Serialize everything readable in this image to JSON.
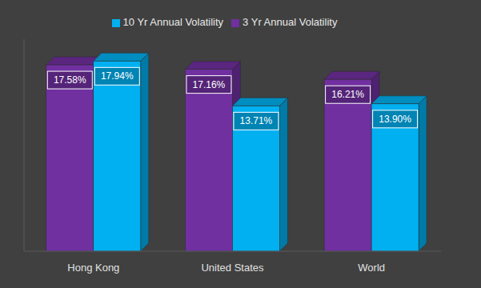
{
  "chart_data": {
    "type": "bar",
    "categories": [
      "Hong Kong",
      "United States",
      "World"
    ],
    "series": [
      {
        "name": "3 Yr Annual Volatility",
        "color": "#7030a0",
        "values": [
          17.58,
          17.16,
          16.21
        ],
        "value_labels": [
          "17.58%",
          "17.16%",
          "16.21%"
        ]
      },
      {
        "name": "10 Yr Annual Volatility",
        "color": "#00b0f0",
        "values": [
          17.94,
          13.71,
          13.9
        ],
        "value_labels": [
          "17.94%",
          "13.71%",
          "13.90%"
        ]
      }
    ],
    "ylim": [
      0,
      20
    ],
    "data_labels": true,
    "tick_labels": "x",
    "legend": "top"
  }
}
